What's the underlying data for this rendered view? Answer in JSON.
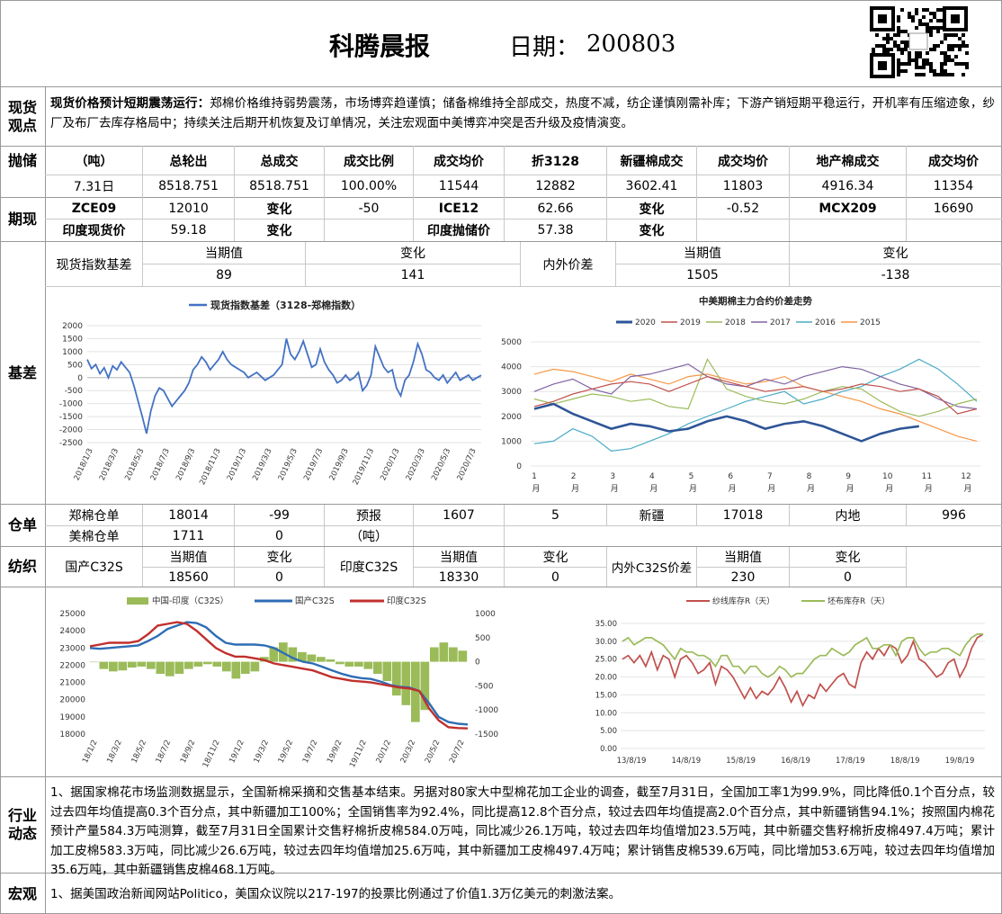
{
  "header": {
    "title": "科腾晨报",
    "date_label": "日期：",
    "date": "200803"
  },
  "sections": {
    "spot": "现货\n观点",
    "auction": "抛储",
    "futures_spot": "期现",
    "basis": "基差",
    "warehouse": "仓单",
    "textile": "纺织",
    "industry": "行业\n动态",
    "macro": "宏观"
  },
  "spot_view": {
    "headline": "现货价格预计短期震荡运行：",
    "body": "郑棉价格维持弱势震荡，市场博弈趋谨慎；储备棉维持全部成交，热度不减，纺企谨慎刚需补库；下游产销短期平稳运行，开机率有压缩迹象，纱厂及布厂去库存格局中；持续关注后期开机恢复及订单情况，关注宏观面中美博弈冲突是否升级及疫情演变。"
  },
  "auction": {
    "headers": [
      "（吨）",
      "总轮出",
      "总成交",
      "成交比例",
      "成交均价",
      "折3128",
      "新疆棉成交",
      "成交均价",
      "地产棉成交",
      "成交均价"
    ],
    "row": [
      "7.31日",
      "8518.751",
      "8518.751",
      "100.00%",
      "11544",
      "12882",
      "3602.41",
      "11803",
      "4916.34",
      "11354"
    ]
  },
  "futures": {
    "row1": [
      "ZCE09",
      "12010",
      "变化",
      "-50",
      "ICE12",
      "62.66",
      "变化",
      "-0.52",
      "MCX209",
      "16690"
    ],
    "row2": [
      "印度现货价",
      "59.18",
      "变化",
      "",
      "印度抛储价",
      "57.38",
      "变化",
      ""
    ]
  },
  "basis": {
    "label1": "现货指数基差",
    "h_current": "当期值",
    "h_change": "变化",
    "v1": "89",
    "c1": "141",
    "label2": "内外价差",
    "v2": "1505",
    "c2": "-138"
  },
  "warehouse": {
    "zce_label": "郑棉仓单",
    "zce_value": "18014",
    "zce_change": "-99",
    "forecast_label": "预报",
    "forecast_value": "1607",
    "forecast_change": "5",
    "xj_label": "新疆",
    "xj_value": "17018",
    "inland_label": "内地",
    "inland_value": "996",
    "us_label": "美棉仓单",
    "us_value": "1711",
    "us_change": "0",
    "unit": "（吨）"
  },
  "textile": {
    "h_current": "当期值",
    "h_change": "变化",
    "dom_label": "国产C32S",
    "dom_value": "18560",
    "dom_change": "0",
    "ind_label": "印度C32S",
    "ind_value": "18330",
    "ind_change": "0",
    "spread_label": "内外C32S价差",
    "spread_value": "230",
    "spread_change": "0"
  },
  "industry_text": "1、据国家棉花市场监测数据显示，全国新棉采摘和交售基本结束。另据对80家大中型棉花加工企业的调查，截至7月31日，全国加工率1为99.9%，同比降低0.1个百分点，较过去四年均值提高0.3个百分点，其中新疆加工100%；全国销售率为92.4%，同比提高12.8个百分点，较过去四年均值提高2.0个百分点，其中新疆销售94.1%；按照国内棉花预计产量584.3万吨测算，截至7月31日全国累计交售籽棉折皮棉584.0万吨，同比减少26.1万吨，较过去四年均值增加23.5万吨，其中新疆交售籽棉折皮棉497.4万吨；累计加工皮棉583.3万吨，同比减少26.6万吨，较过去四年均值增加25.6万吨，其中新疆加工皮棉497.4万吨；累计销售皮棉539.6万吨，同比增加53.6万吨，较过去四年均值增加35.6万吨，其中新疆销售皮棉468.1万吨。",
  "macro_text": "1、据美国政治新闻网站Politico，美国众议院以217-197的投票比例通过了价值1.3万亿美元的刺激法案。",
  "chart_data": [
    {
      "type": "line",
      "title": "",
      "series": [
        {
          "name": "现货指数基差（3128-郑棉指数）",
          "color": "#4472c4",
          "values": [
            700,
            350,
            500,
            150,
            380,
            0,
            450,
            300,
            600,
            400,
            200,
            -300,
            -900,
            -1500,
            -2150,
            -1300,
            -700,
            -400,
            -500,
            -800,
            -1100,
            -900,
            -700,
            -500,
            -200,
            300,
            500,
            800,
            600,
            300,
            500,
            700,
            1000,
            700,
            500,
            400,
            300,
            200,
            0,
            100,
            200,
            50,
            -100,
            0,
            100,
            300,
            500,
            1500,
            900,
            700,
            1000,
            1400,
            900,
            400,
            500,
            1100,
            600,
            300,
            100,
            -200,
            -100,
            100,
            -100,
            0,
            200,
            -500,
            -300,
            100,
            1200,
            800,
            400,
            200,
            300,
            -400,
            -700,
            -100,
            100,
            600,
            1300,
            900,
            300,
            200,
            0,
            -100,
            100,
            -200,
            0,
            200,
            -100,
            0,
            100,
            -100,
            0,
            89
          ]
        }
      ],
      "x_ticks": [
        "2018/1/3",
        "2018/3/3",
        "2018/5/3",
        "2018/7/3",
        "2018/9/3",
        "2018/11/3",
        "2019/1/3",
        "2019/3/3",
        "2019/5/3",
        "2019/7/3",
        "2019/9/3",
        "2019/11/3",
        "2020/1/3",
        "2020/3/3",
        "2020/5/3",
        "2020/7/3"
      ],
      "ylim": [
        -2500,
        2000
      ],
      "y_ticks": [
        -2500,
        -2000,
        -1500,
        -1000,
        -500,
        0,
        500,
        1000,
        1500,
        2000
      ]
    },
    {
      "type": "line",
      "title": "中美期棉主力合约价差走势",
      "ylim": [
        0,
        5000
      ],
      "y_ticks": [
        0,
        1000,
        2000,
        3000,
        4000,
        5000
      ],
      "x_ticks": [
        "1\n月",
        "2\n月",
        "3\n月",
        "4\n月",
        "5\n月",
        "6\n月",
        "7\n月",
        "8\n月",
        "9\n月",
        "10\n月",
        "11\n月",
        "12\n月"
      ],
      "series": [
        {
          "name": "2020",
          "color": "#2e5597",
          "values": [
            2300,
            2500,
            2100,
            1800,
            1500,
            1700,
            1600,
            1400,
            1500,
            1800,
            2000,
            1800,
            1500,
            1700,
            1800,
            1600,
            1300,
            1000,
            1300,
            1500,
            1600,
            null,
            null,
            null
          ]
        },
        {
          "name": "2019",
          "color": "#c0504d",
          "values": [
            2400,
            2600,
            2900,
            3100,
            3300,
            3400,
            3300,
            3000,
            3300,
            3600,
            3400,
            3200,
            3000,
            3100,
            3200,
            3000,
            3100,
            3300,
            3200,
            3000,
            3100,
            2800,
            2100,
            2300
          ]
        },
        {
          "name": "2018",
          "color": "#9bbb59",
          "values": [
            2700,
            2500,
            2700,
            2900,
            2800,
            2600,
            2700,
            2400,
            2300,
            4300,
            3100,
            2800,
            2600,
            2500,
            2700,
            3000,
            3200,
            3100,
            2600,
            2200,
            2000,
            2200,
            2500,
            2700
          ]
        },
        {
          "name": "2017",
          "color": "#8064a2",
          "values": [
            3000,
            3300,
            3500,
            3100,
            2900,
            3600,
            3700,
            3900,
            4100,
            3600,
            3300,
            3200,
            3500,
            3300,
            3600,
            3800,
            4000,
            3900,
            3600,
            3300,
            3100,
            2700,
            2400,
            2300
          ]
        },
        {
          "name": "2016",
          "color": "#4bacc6",
          "values": [
            900,
            1000,
            1500,
            1200,
            600,
            700,
            1000,
            1300,
            1700,
            2000,
            2300,
            2600,
            2800,
            3000,
            2500,
            2700,
            3000,
            3200,
            3600,
            3900,
            4300,
            3900,
            3300,
            2600
          ]
        },
        {
          "name": "2015",
          "color": "#f79646",
          "values": [
            3700,
            3900,
            3800,
            3600,
            3400,
            3700,
            3500,
            3300,
            3600,
            3700,
            3500,
            3300,
            3400,
            3600,
            3200,
            3000,
            2800,
            2600,
            2300,
            2100,
            1800,
            1500,
            1200,
            1000
          ]
        }
      ]
    },
    {
      "type": "bar+line",
      "title": "",
      "left_ylim": [
        18000,
        25000
      ],
      "right_ylim": [
        -1500,
        1000
      ],
      "left_ticks": [
        18000,
        19000,
        20000,
        21000,
        22000,
        23000,
        24000,
        25000
      ],
      "right_ticks": [
        -1500,
        -1000,
        -500,
        0,
        500,
        1000
      ],
      "x_ticks": [
        "18/1/2",
        "18/3/2",
        "18/5/2",
        "18/7/2",
        "18/9/2",
        "18/11/2",
        "19/1/2",
        "19/3/2",
        "19/5/2",
        "19/7/2",
        "19/9/2",
        "19/11/2",
        "20/1/2",
        "20/3/2",
        "20/5/2",
        "20/7/2"
      ],
      "series": [
        {
          "name": "中国-印度（C32S）",
          "color": "#9bbb59",
          "kind": "bar",
          "values": [
            0,
            -150,
            -200,
            -180,
            -120,
            -100,
            -150,
            -250,
            -300,
            -250,
            -150,
            -100,
            -50,
            -100,
            -200,
            -350,
            -250,
            -200,
            100,
            300,
            400,
            300,
            200,
            150,
            100,
            50,
            -50,
            -100,
            -100,
            -150,
            -250,
            -400,
            -700,
            -900,
            -1250,
            -1000,
            300,
            400,
            300,
            230
          ]
        },
        {
          "name": "国产C32S",
          "color": "#2e6db5",
          "kind": "line",
          "values": [
            23000,
            22950,
            23000,
            23050,
            23100,
            23150,
            23400,
            23700,
            24100,
            24300,
            24500,
            24450,
            24200,
            23700,
            23300,
            23200,
            23200,
            23200,
            23150,
            23000,
            22700,
            22400,
            22200,
            22100,
            21900,
            21700,
            21500,
            21350,
            21250,
            21200,
            21050,
            20850,
            20750,
            20700,
            20500,
            19800,
            19000,
            18700,
            18600,
            18560
          ]
        },
        {
          "name": "印度C32S",
          "color": "#c0302d",
          "kind": "line",
          "values": [
            23100,
            23200,
            23300,
            23300,
            23300,
            23400,
            23800,
            24300,
            24400,
            24500,
            24400,
            24000,
            23500,
            23000,
            22700,
            22500,
            22500,
            22400,
            22300,
            22100,
            22000,
            21900,
            21800,
            21700,
            21500,
            21300,
            21200,
            21100,
            21050,
            21000,
            20900,
            20800,
            20700,
            20650,
            20500,
            19500,
            18800,
            18400,
            18350,
            18330
          ]
        }
      ]
    },
    {
      "type": "line",
      "title": "",
      "ylim": [
        0,
        35
      ],
      "y_ticks": [
        "0.00",
        "5.00",
        "10.00",
        "15.00",
        "20.00",
        "25.00",
        "30.00",
        "35.00"
      ],
      "x_ticks": [
        "13/8/19",
        "14/8/19",
        "15/8/19",
        "16/8/19",
        "17/8/19",
        "18/8/19",
        "19/8/19"
      ],
      "series": [
        {
          "name": "纱线库存R（天）",
          "color": "#c0504d",
          "values": [
            25,
            26,
            24,
            26,
            23,
            27,
            22,
            26,
            25,
            20,
            25,
            26,
            24,
            21,
            22,
            24,
            18,
            23,
            22,
            20,
            17,
            14,
            17,
            14,
            16,
            15,
            17,
            20,
            17,
            13,
            16,
            12,
            15,
            14,
            18,
            16,
            18,
            20,
            21,
            18,
            17,
            24,
            27,
            25,
            28,
            26,
            29,
            28,
            24,
            26,
            30,
            25,
            24,
            22,
            20,
            21,
            24,
            25,
            20,
            23,
            28,
            31,
            32
          ]
        },
        {
          "name": "坯布库存R（天）",
          "color": "#9bbb59",
          "values": [
            30,
            31,
            29,
            30,
            31,
            31,
            30,
            29,
            27,
            25,
            28,
            27,
            27,
            26,
            26,
            25,
            23,
            26,
            26,
            23,
            23,
            21,
            23,
            23,
            21,
            20,
            21,
            23,
            22,
            20,
            21,
            21,
            23,
            25,
            26,
            26,
            28,
            27,
            26,
            27,
            29,
            30,
            31,
            28,
            28,
            29,
            29,
            26,
            30,
            31,
            31,
            28,
            26,
            27,
            27,
            28,
            28,
            27,
            26,
            29,
            31,
            32,
            32
          ]
        }
      ]
    }
  ]
}
